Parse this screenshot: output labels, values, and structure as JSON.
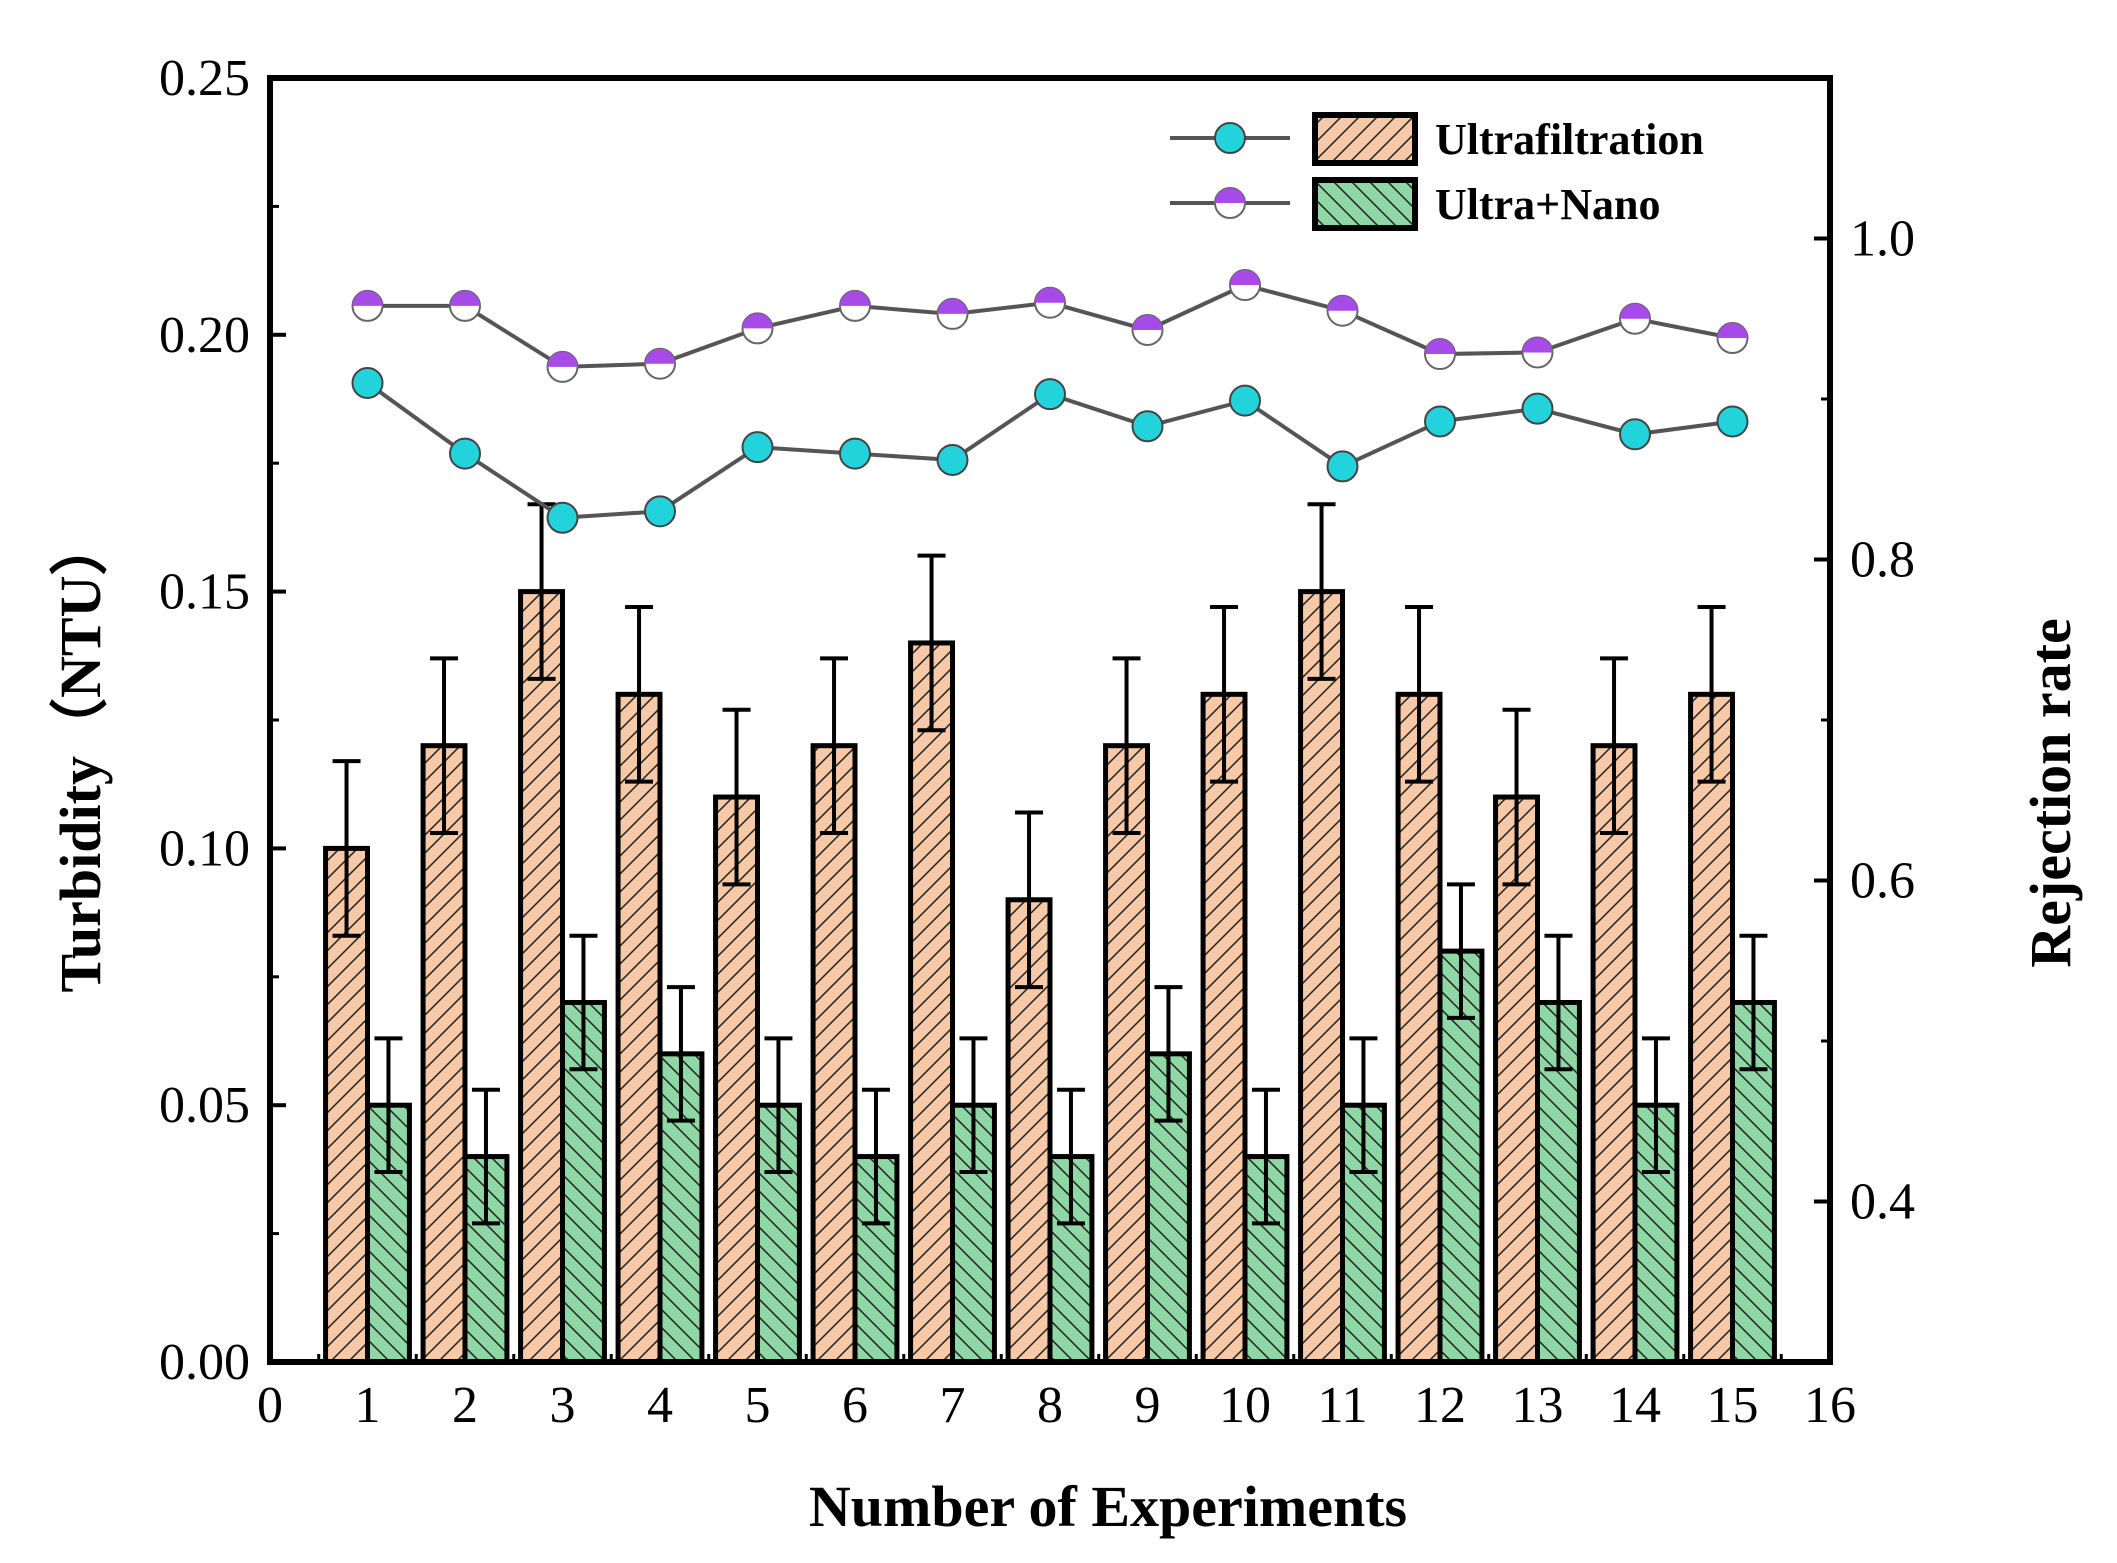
{
  "chart_data": {
    "type": "bar",
    "x": [
      1,
      2,
      3,
      4,
      5,
      6,
      7,
      8,
      9,
      10,
      11,
      12,
      13,
      14,
      15
    ],
    "xlabel": "Number of Experiments",
    "ylabel": "Turbidity（NTU）",
    "y2label": "Rejection rate",
    "xlim": [
      0,
      16
    ],
    "ylim": [
      0,
      0.25
    ],
    "y2lim": [
      0.3,
      1.1
    ],
    "xticks": [
      "0",
      "1",
      "2",
      "3",
      "4",
      "5",
      "6",
      "7",
      "8",
      "9",
      "10",
      "11",
      "12",
      "13",
      "14",
      "15",
      "16"
    ],
    "yticks": [
      "0.00",
      "0.05",
      "0.10",
      "0.15",
      "0.20",
      "0.25"
    ],
    "y2ticks": [
      "0.4",
      "0.6",
      "0.8",
      "1.0"
    ],
    "series": [
      {
        "name": "Ultrafiltration",
        "kind": "bar",
        "color": "#F8C9A6",
        "values": [
          0.1,
          0.12,
          0.15,
          0.13,
          0.11,
          0.12,
          0.14,
          0.09,
          0.12,
          0.13,
          0.15,
          0.13,
          0.11,
          0.12,
          0.13
        ],
        "error": [
          0.017,
          0.017,
          0.017,
          0.017,
          0.017,
          0.017,
          0.017,
          0.017,
          0.017,
          0.017,
          0.017,
          0.017,
          0.017,
          0.017,
          0.017
        ]
      },
      {
        "name": "Ultra+Nano",
        "kind": "bar",
        "color": "#8ED8A6",
        "values": [
          0.05,
          0.04,
          0.07,
          0.06,
          0.05,
          0.04,
          0.05,
          0.04,
          0.06,
          0.04,
          0.05,
          0.08,
          0.07,
          0.05,
          0.07
        ],
        "error": [
          0.013,
          0.013,
          0.013,
          0.013,
          0.013,
          0.013,
          0.013,
          0.013,
          0.013,
          0.013,
          0.013,
          0.013,
          0.013,
          0.013,
          0.013
        ]
      },
      {
        "name": "Ultrafiltration rejection rate",
        "kind": "line",
        "axis": "y2",
        "marker_color": "#22D3DC",
        "values": [
          0.91,
          0.866,
          0.826,
          0.83,
          0.87,
          0.866,
          0.862,
          0.903,
          0.883,
          0.899,
          0.858,
          0.886,
          0.894,
          0.878,
          0.886
        ]
      },
      {
        "name": "Ultra+Nano rejection rate",
        "kind": "line",
        "axis": "y2",
        "marker_color": "#A64BE8",
        "values": [
          0.958,
          0.958,
          0.92,
          0.922,
          0.944,
          0.958,
          0.953,
          0.96,
          0.943,
          0.971,
          0.955,
          0.928,
          0.929,
          0.95,
          0.938
        ]
      }
    ],
    "legend": {
      "position": "top-right",
      "entries": [
        "Ultrafiltration",
        "Ultra+Nano"
      ]
    }
  }
}
